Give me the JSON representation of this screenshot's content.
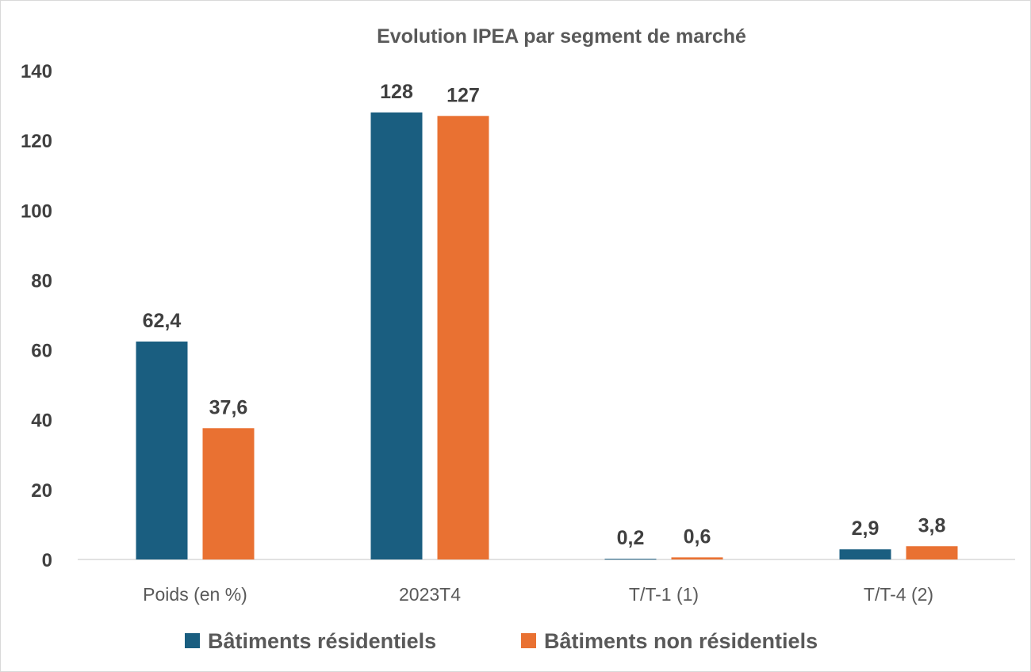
{
  "chart_data": {
    "type": "bar",
    "title": "Evolution IPEA par segment de marché",
    "categories": [
      "Poids (en %)",
      "2023T4",
      "T/T-1 (1)",
      "T/T-4 (2)"
    ],
    "series": [
      {
        "name": "Bâtiments résidentiels",
        "color": "#1a5e80",
        "values": [
          62.4,
          128,
          0.2,
          2.9
        ],
        "labels": [
          "62,4",
          "128",
          "0,2",
          "2,9"
        ]
      },
      {
        "name": "Bâtiments non résidentiels",
        "color": "#e97132",
        "values": [
          37.6,
          127,
          0.6,
          3.8
        ],
        "labels": [
          "37,6",
          "127",
          "0,6",
          "3,8"
        ]
      }
    ],
    "ylim": [
      0,
      140
    ],
    "yticks": [
      "0",
      "20",
      "40",
      "60",
      "80",
      "100",
      "120",
      "140"
    ],
    "xlabel": "",
    "ylabel": "",
    "grid": false,
    "legend_position": "bottom"
  }
}
